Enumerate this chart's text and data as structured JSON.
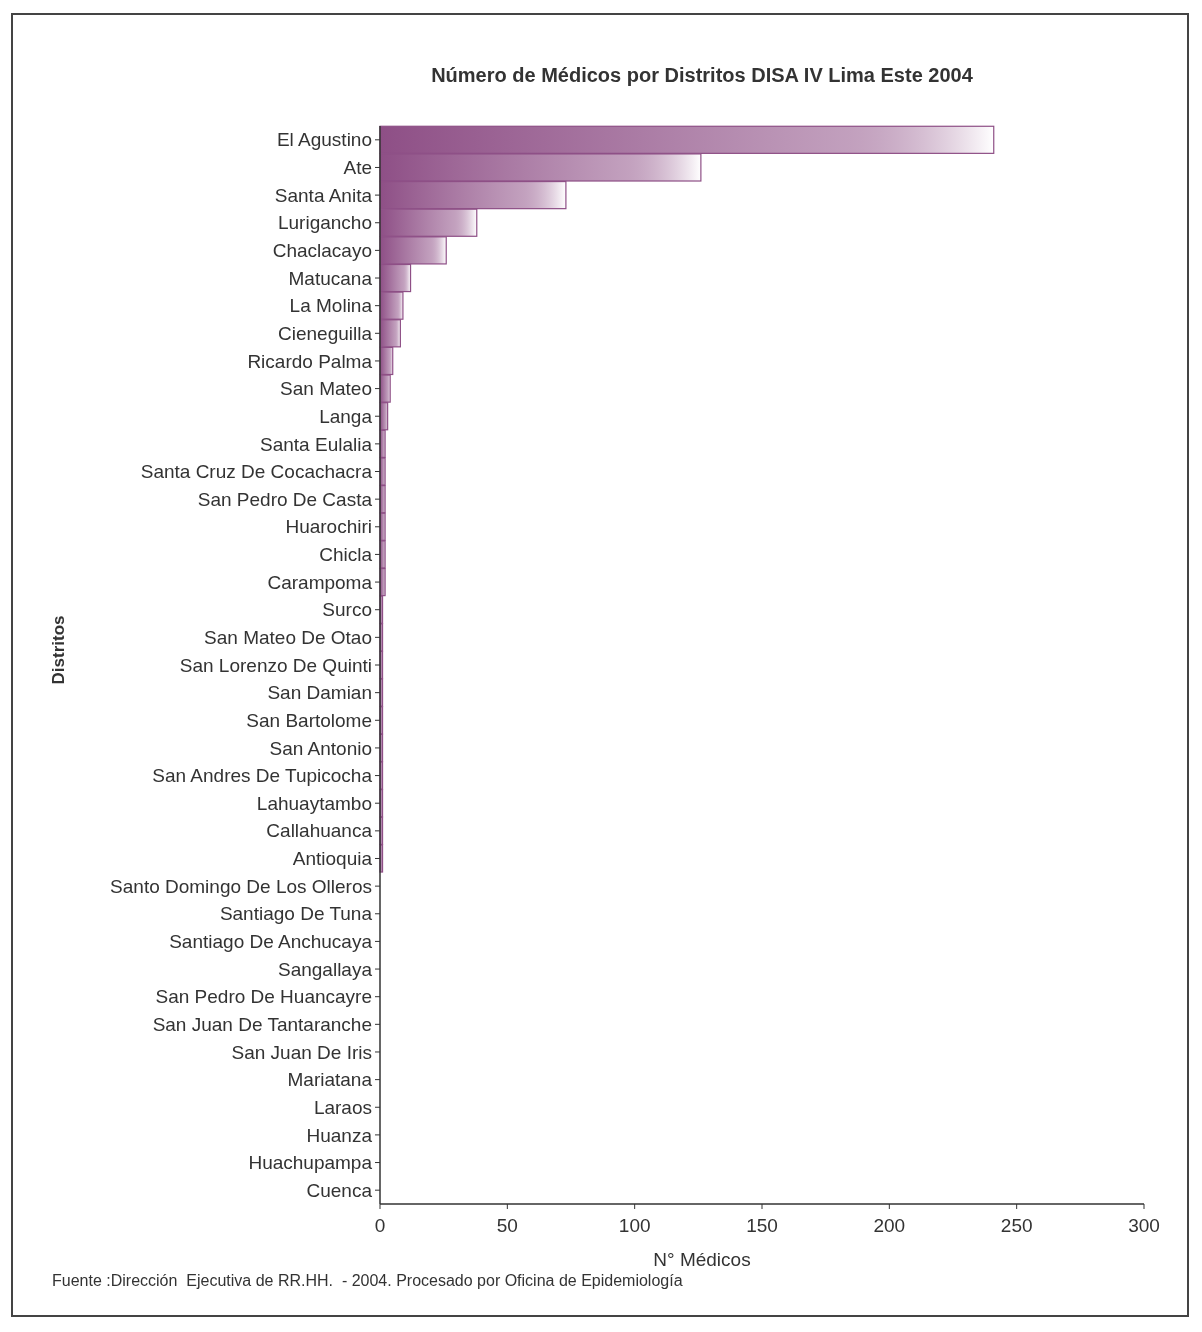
{
  "chart_data": {
    "type": "bar",
    "orientation": "horizontal",
    "title": "Número de Médicos por Distritos DISA IV Lima Este 2004",
    "xlabel": "N° Médicos",
    "ylabel": "Distritos",
    "categories": [
      "El Agustino",
      "Ate",
      "Santa Anita",
      "Lurigancho",
      "Chaclacayo",
      "Matucana",
      "La Molina",
      "Cieneguilla",
      "Ricardo Palma",
      "San Mateo",
      "Langa",
      "Santa Eulalia",
      "Santa Cruz De Cocachacra",
      "San Pedro De Casta",
      "Huarochiri",
      "Chicla",
      "Carampoma",
      "Surco",
      "San Mateo De Otao",
      "San Lorenzo De Quinti",
      "San Damian",
      "San Bartolome",
      "San Antonio",
      "San Andres De Tupicocha",
      "Lahuaytambo",
      "Callahuanca",
      "Antioquia",
      "Santo Domingo De Los Olleros",
      "Santiago De Tuna",
      "Santiago De Anchucaya",
      "Sangallaya",
      "San Pedro De Huancayre",
      "San Juan De Tantaranche",
      "San Juan De Iris",
      "Mariatana",
      "Laraos",
      "Huanza",
      "Huachupampa",
      "Cuenca"
    ],
    "values": [
      241,
      126,
      73,
      38,
      26,
      12,
      9,
      8,
      5,
      4,
      3,
      2,
      2,
      2,
      2,
      2,
      2,
      1,
      1,
      1,
      1,
      1,
      1,
      1,
      1,
      1,
      1,
      0,
      0,
      0,
      0,
      0,
      0,
      0,
      0,
      0,
      0,
      0,
      0
    ],
    "color": "#8e4f86",
    "xlim": [
      0,
      300
    ],
    "xticks": [
      0,
      50,
      100,
      150,
      200,
      250,
      300
    ],
    "grid": false,
    "annotations": [
      "Fuente :Dirección  Ejecutiva de RR.HH.  - 2004. Procesado por Oficina de Epidemiología"
    ]
  }
}
